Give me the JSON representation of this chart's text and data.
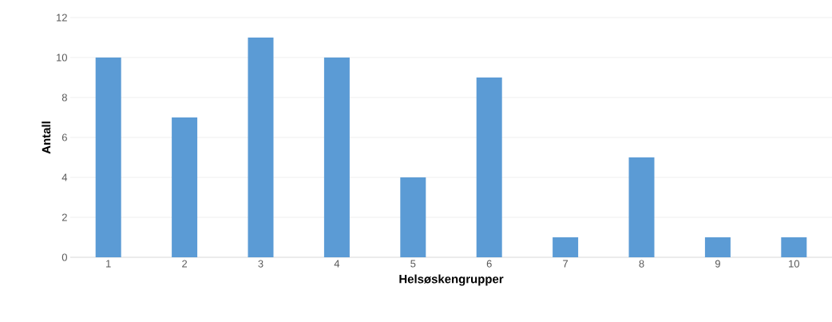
{
  "chart_data": {
    "type": "bar",
    "xlabel": "Helsøskengrupper",
    "ylabel": "Antall",
    "categories": [
      "1",
      "2",
      "3",
      "4",
      "5",
      "6",
      "7",
      "8",
      "9",
      "10"
    ],
    "values": [
      10,
      7,
      11,
      10,
      4,
      9,
      1,
      5,
      1,
      1
    ],
    "color": "#5b9bd5",
    "ylim": [
      0,
      12
    ],
    "yticks": [
      0,
      2,
      4,
      6,
      8,
      10,
      12
    ],
    "grid": "y"
  }
}
